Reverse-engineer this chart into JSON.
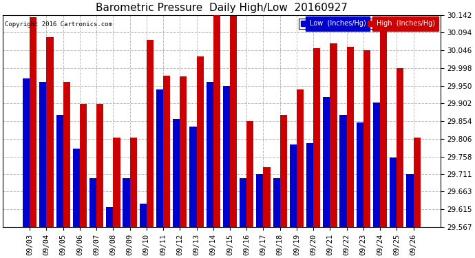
{
  "title": "Barometric Pressure  Daily High/Low  20160927",
  "copyright": "Copyright 2016 Cartronics.com",
  "categories": [
    "09/03",
    "09/04",
    "09/05",
    "09/06",
    "09/07",
    "09/08",
    "09/09",
    "09/10",
    "09/11",
    "09/12",
    "09/13",
    "09/14",
    "09/15",
    "09/16",
    "09/17",
    "09/18",
    "09/19",
    "09/20",
    "09/21",
    "09/22",
    "09/23",
    "09/24",
    "09/25",
    "09/26"
  ],
  "low_values": [
    29.97,
    29.96,
    29.87,
    29.78,
    29.7,
    29.62,
    29.7,
    29.63,
    29.94,
    29.86,
    29.84,
    29.96,
    29.95,
    29.7,
    29.71,
    29.7,
    29.79,
    29.795,
    29.92,
    29.87,
    29.85,
    29.905,
    29.755,
    29.71
  ],
  "high_values": [
    30.135,
    30.082,
    29.96,
    29.9,
    29.9,
    29.81,
    29.81,
    30.075,
    29.978,
    29.975,
    30.03,
    30.142,
    30.14,
    29.855,
    29.73,
    29.87,
    29.94,
    30.052,
    30.065,
    30.055,
    30.046,
    30.108,
    29.998,
    29.81
  ],
  "low_color": "#0000cc",
  "high_color": "#cc0000",
  "bg_color": "#ffffff",
  "plot_bg_color": "#ffffff",
  "grid_color": "#bbbbbb",
  "ylim_min": 29.567,
  "ylim_max": 30.142,
  "yticks": [
    29.567,
    29.615,
    29.663,
    29.711,
    29.758,
    29.806,
    29.854,
    29.902,
    29.95,
    29.998,
    30.046,
    30.094,
    30.142
  ],
  "title_fontsize": 11,
  "tick_fontsize": 7.5,
  "legend_low_label": "Low  (Inches/Hg)",
  "legend_high_label": "High  (Inches/Hg)",
  "bar_width": 0.42,
  "baseline": 29.567
}
